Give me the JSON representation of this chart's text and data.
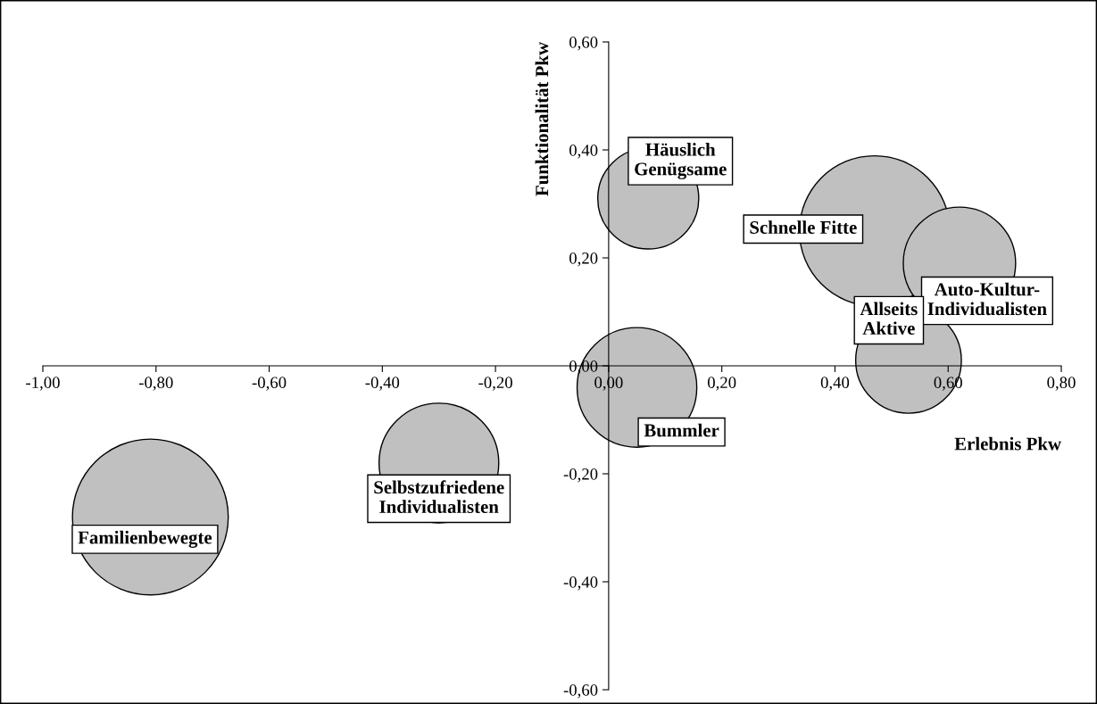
{
  "chart_data": {
    "type": "bubble",
    "xlabel": "Erlebnis Pkw",
    "ylabel": "Funktionalität Pkw",
    "xlim": [
      -1.0,
      0.8
    ],
    "ylim": [
      -0.6,
      0.6
    ],
    "xticks": [
      {
        "value": -1.0,
        "label": "-1,00"
      },
      {
        "value": -0.8,
        "label": "-0,80"
      },
      {
        "value": -0.6,
        "label": "-0,60"
      },
      {
        "value": -0.4,
        "label": "-0,40"
      },
      {
        "value": -0.2,
        "label": "-0,20"
      },
      {
        "value": 0.0,
        "label": "0,00"
      },
      {
        "value": 0.2,
        "label": "0,20"
      },
      {
        "value": 0.4,
        "label": "0,40"
      },
      {
        "value": 0.6,
        "label": "0,60"
      },
      {
        "value": 0.8,
        "label": "0,80"
      }
    ],
    "yticks": [
      {
        "value": -0.6,
        "label": "-0,60"
      },
      {
        "value": -0.4,
        "label": "-0,40"
      },
      {
        "value": -0.2,
        "label": "-0,20"
      },
      {
        "value": 0.0,
        "label": "0,00"
      },
      {
        "value": 0.2,
        "label": "0,20"
      },
      {
        "value": 0.4,
        "label": "0,40"
      },
      {
        "value": 0.6,
        "label": "0,60"
      }
    ],
    "grid": false,
    "legend": false,
    "series": [
      {
        "color": "#c0c0c0",
        "x": [
          0.07,
          0.47,
          0.62,
          0.53,
          0.05,
          -0.3,
          -0.81
        ],
        "values": [
          0.31,
          0.25,
          0.19,
          0.01,
          -0.04,
          -0.18,
          -0.28
        ],
        "sizes": [
          0.42,
          0.93,
          0.52,
          0.46,
          0.59,
          0.59,
          1.0
        ]
      }
    ],
    "annotations": [
      {
        "text": "Häuslich\nGenügsame",
        "x": 0.07,
        "y": 0.31
      },
      {
        "text": "Schnelle Fitte",
        "x": 0.47,
        "y": 0.25
      },
      {
        "text": "Auto-Kultur-\nIndividualisten",
        "x": 0.62,
        "y": 0.19
      },
      {
        "text": "Allseits\nAktive",
        "x": 0.53,
        "y": 0.01
      },
      {
        "text": "Bummler",
        "x": 0.05,
        "y": -0.04
      },
      {
        "text": "Selbstzufriedene\nIndividualisten",
        "x": -0.3,
        "y": -0.18
      },
      {
        "text": "Familienbewegte",
        "x": -0.81,
        "y": -0.28
      }
    ]
  }
}
